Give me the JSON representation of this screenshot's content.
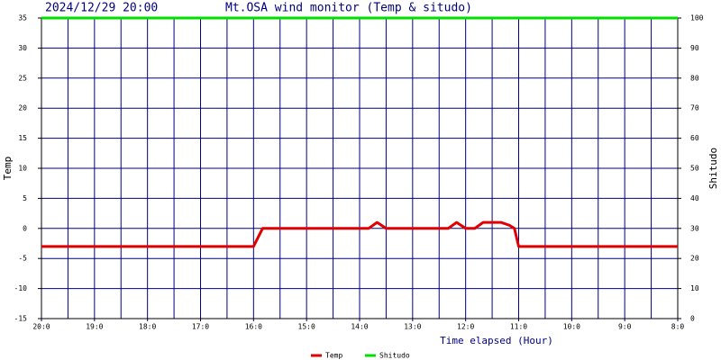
{
  "chart_data": {
    "type": "line",
    "title": "Mt.OSA wind monitor (Temp & situdo)",
    "subtitle": "2024/12/29 20:00",
    "x_label": "Time elapsed (Hour)",
    "y_label": "Temp",
    "y2_label": "Shitudo",
    "x": [
      0,
      4,
      4.17,
      6.17,
      6.33,
      6.5,
      7.67,
      7.83,
      8,
      8.17,
      8.33,
      8.67,
      8.83,
      8.92,
      9,
      12
    ],
    "series": [
      {
        "name": "Temp",
        "color": "#e00000",
        "values": [
          -3,
          -3,
          0,
          0,
          1,
          0,
          0,
          1,
          0,
          0,
          1,
          1,
          0.5,
          0,
          -3,
          -3
        ]
      },
      {
        "name": "Shitudo",
        "color": "#00e000",
        "axis": "y2",
        "values": [
          100,
          100,
          100,
          100,
          100,
          100,
          100,
          100,
          100,
          100,
          100,
          100,
          100,
          100,
          100,
          100
        ]
      }
    ],
    "xlim": [
      0,
      12
    ],
    "xticks": [
      {
        "value": 0,
        "label": "20:0"
      },
      {
        "value": 1,
        "label": "19:0"
      },
      {
        "value": 2,
        "label": "18:0"
      },
      {
        "value": 3,
        "label": "17:0"
      },
      {
        "value": 4,
        "label": "16:0"
      },
      {
        "value": 5,
        "label": "15:0"
      },
      {
        "value": 6,
        "label": "14:0"
      },
      {
        "value": 7,
        "label": "13:0"
      },
      {
        "value": 8,
        "label": "12:0"
      },
      {
        "value": 9,
        "label": "11:0"
      },
      {
        "value": 10,
        "label": "10:0"
      },
      {
        "value": 11,
        "label": "9:0"
      },
      {
        "value": 12,
        "label": "8:0"
      }
    ],
    "x_minor_ticks": [
      0.5,
      1.5,
      2.5,
      3.5,
      4.5,
      5.5,
      6.5,
      7.5,
      8.5,
      9.5,
      10.5,
      11.5
    ],
    "ylim": [
      -15,
      35
    ],
    "yticks": [
      -15,
      -10,
      -5,
      0,
      5,
      10,
      15,
      20,
      25,
      30,
      35
    ],
    "y2lim": [
      0,
      100
    ],
    "y2ticks": [
      0,
      10,
      20,
      30,
      40,
      50,
      60,
      70,
      80,
      90,
      100
    ],
    "grid": true
  }
}
